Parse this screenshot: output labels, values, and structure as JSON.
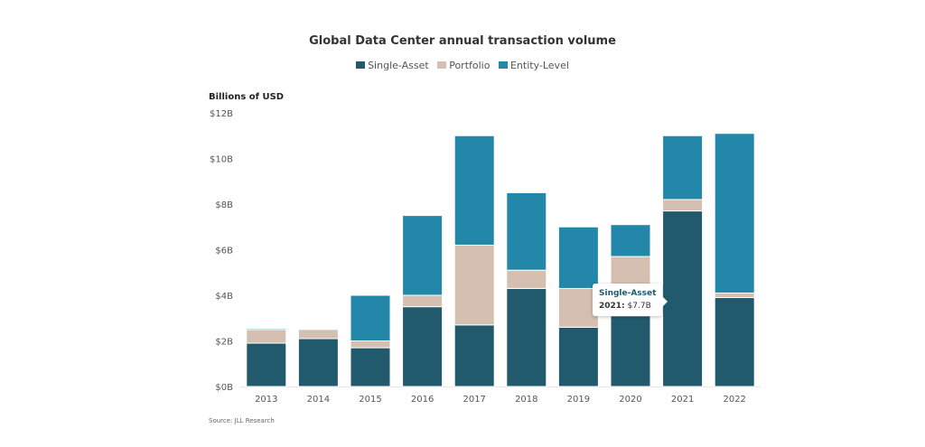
{
  "chart_data": {
    "type": "bar",
    "stacked": true,
    "title": "Global Data Center annual transaction volume",
    "ylabel": "Billions of USD",
    "xlabel": "",
    "ylim": [
      0,
      12
    ],
    "yticks": [
      0,
      2,
      4,
      6,
      8,
      10,
      12
    ],
    "ytick_labels": [
      "$0B",
      "$2B",
      "$4B",
      "$6B",
      "$8B",
      "$10B",
      "$12B"
    ],
    "grid": false,
    "legend_position": "top-center",
    "categories": [
      "2013",
      "2014",
      "2015",
      "2016",
      "2017",
      "2018",
      "2019",
      "2020",
      "2021",
      "2022"
    ],
    "series": [
      {
        "name": "Single-Asset",
        "color": "#215a6d",
        "values": [
          1.9,
          2.1,
          1.7,
          3.5,
          2.7,
          4.3,
          2.6,
          3.1,
          7.7,
          3.9
        ]
      },
      {
        "name": "Portfolio",
        "color": "#d4bfb0",
        "values": [
          0.6,
          0.4,
          0.3,
          0.5,
          3.5,
          0.8,
          1.7,
          2.6,
          0.5,
          0.2
        ]
      },
      {
        "name": "Entity-Level",
        "color": "#2287a8",
        "values": [
          0.05,
          0,
          2.0,
          3.5,
          4.8,
          3.4,
          2.7,
          1.4,
          2.8,
          7.0
        ]
      }
    ],
    "tooltip": {
      "series": "Single-Asset",
      "year": "2021:",
      "value": "$7.7B"
    },
    "source": "Source: JLL Research"
  }
}
